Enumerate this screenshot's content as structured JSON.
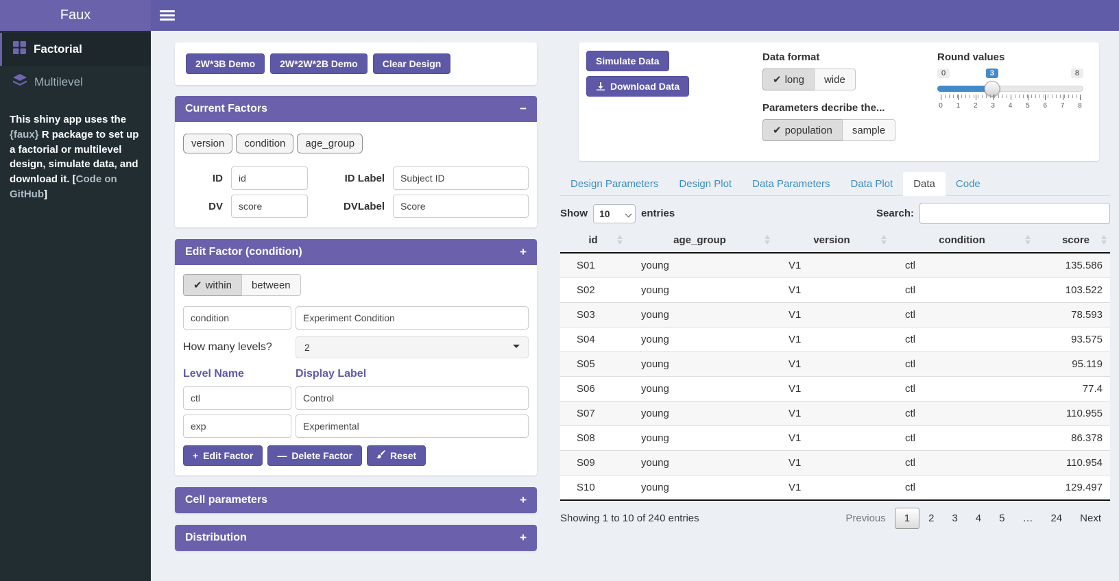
{
  "header": {
    "title": "Faux"
  },
  "sidebar": {
    "items": [
      {
        "label": "Factorial",
        "icon": "grid-icon",
        "active": true
      },
      {
        "label": "Multilevel",
        "icon": "layers-icon",
        "active": false
      }
    ],
    "description": {
      "pre": "This shiny app uses the ",
      "pkg": "{faux}",
      "mid": " R package to set up a factorial or multilevel design, simulate data, and download it. [",
      "link": "Code on GitHub",
      "post": "]"
    }
  },
  "demo_card": {
    "buttons": [
      "2W*3B Demo",
      "2W*2W*2B Demo",
      "Clear Design"
    ]
  },
  "current_factors": {
    "title": "Current Factors",
    "collapse_icon": "−",
    "chips": [
      "version",
      "condition",
      "age_group"
    ],
    "fields": [
      {
        "label": "ID",
        "value": "id"
      },
      {
        "label": "ID Label",
        "value": "Subject ID"
      },
      {
        "label": "DV",
        "value": "score"
      },
      {
        "label": "DVLabel",
        "value": "Score"
      }
    ]
  },
  "edit_factor": {
    "title": "Edit Factor (condition)",
    "collapse_icon": "+",
    "type_toggle": {
      "options": [
        "within",
        "between"
      ],
      "selected": "within"
    },
    "name_value": "condition",
    "label_value": "Experiment Condition",
    "levels_label": "How many levels?",
    "levels_value": "2",
    "col_headers": [
      "Level Name",
      "Display Label"
    ],
    "levels": [
      {
        "name": "ctl",
        "label": "Control"
      },
      {
        "name": "exp",
        "label": "Experimental"
      }
    ],
    "buttons": [
      {
        "icon": "plus-icon",
        "label": "Edit Factor"
      },
      {
        "icon": "minus-icon",
        "label": "Delete Factor"
      },
      {
        "icon": "brush-icon",
        "label": "Reset"
      }
    ]
  },
  "collapsed_panels": [
    {
      "title": "Cell parameters",
      "collapse_icon": "+"
    },
    {
      "title": "Distribution",
      "collapse_icon": "+"
    }
  ],
  "sim_card": {
    "simulate_label": "Simulate Data",
    "download_label": "Download Data",
    "download_icon": "download-icon",
    "data_format": {
      "label": "Data format",
      "options": [
        "long",
        "wide"
      ],
      "selected": "long"
    },
    "parameters": {
      "label": "Parameters decribe the...",
      "options": [
        "population",
        "sample"
      ],
      "selected": "population"
    },
    "slider": {
      "label": "Round values",
      "min": "0",
      "max": "8",
      "value": "3",
      "tick_labels": [
        "0",
        "1",
        "2",
        "3",
        "4",
        "5",
        "6",
        "7",
        "8"
      ]
    }
  },
  "tabs": [
    {
      "label": "Design Parameters",
      "active": false
    },
    {
      "label": "Design Plot",
      "active": false
    },
    {
      "label": "Data Parameters",
      "active": false
    },
    {
      "label": "Data Plot",
      "active": false
    },
    {
      "label": "Data",
      "active": true
    },
    {
      "label": "Code",
      "active": false
    }
  ],
  "table_controls": {
    "show_label": "Show",
    "page_length": "10",
    "entries_label": "entries",
    "search_label": "Search:",
    "search_value": ""
  },
  "data_table": {
    "columns": [
      "id",
      "age_group",
      "version",
      "condition",
      "score"
    ],
    "numeric_columns": [
      "score"
    ],
    "rows": [
      [
        "S01",
        "young",
        "V1",
        "ctl",
        "135.586"
      ],
      [
        "S02",
        "young",
        "V1",
        "ctl",
        "103.522"
      ],
      [
        "S03",
        "young",
        "V1",
        "ctl",
        "78.593"
      ],
      [
        "S04",
        "young",
        "V1",
        "ctl",
        "93.575"
      ],
      [
        "S05",
        "young",
        "V1",
        "ctl",
        "95.119"
      ],
      [
        "S06",
        "young",
        "V1",
        "ctl",
        "77.4"
      ],
      [
        "S07",
        "young",
        "V1",
        "ctl",
        "110.955"
      ],
      [
        "S08",
        "young",
        "V1",
        "ctl",
        "86.378"
      ],
      [
        "S09",
        "young",
        "V1",
        "ctl",
        "110.954"
      ],
      [
        "S10",
        "young",
        "V1",
        "ctl",
        "129.497"
      ]
    ],
    "info": "Showing 1 to 10 of 240 entries",
    "pagination": [
      {
        "label": "Previous",
        "state": "disabled"
      },
      {
        "label": "1",
        "state": "current"
      },
      {
        "label": "2",
        "state": "normal"
      },
      {
        "label": "3",
        "state": "normal"
      },
      {
        "label": "4",
        "state": "normal"
      },
      {
        "label": "5",
        "state": "normal"
      },
      {
        "label": "…",
        "state": "normal"
      },
      {
        "label": "24",
        "state": "normal"
      },
      {
        "label": "Next",
        "state": "normal"
      }
    ]
  },
  "colors": {
    "navbar": "#605ca8",
    "logo": "#6b62ac",
    "box_header": "#6a60ab",
    "button": "#5e59a6",
    "sidebar": "#222d32",
    "page_bg": "#ecf0f5",
    "tab_link": "#3c8dbc",
    "slider_accent": "#428bca"
  }
}
